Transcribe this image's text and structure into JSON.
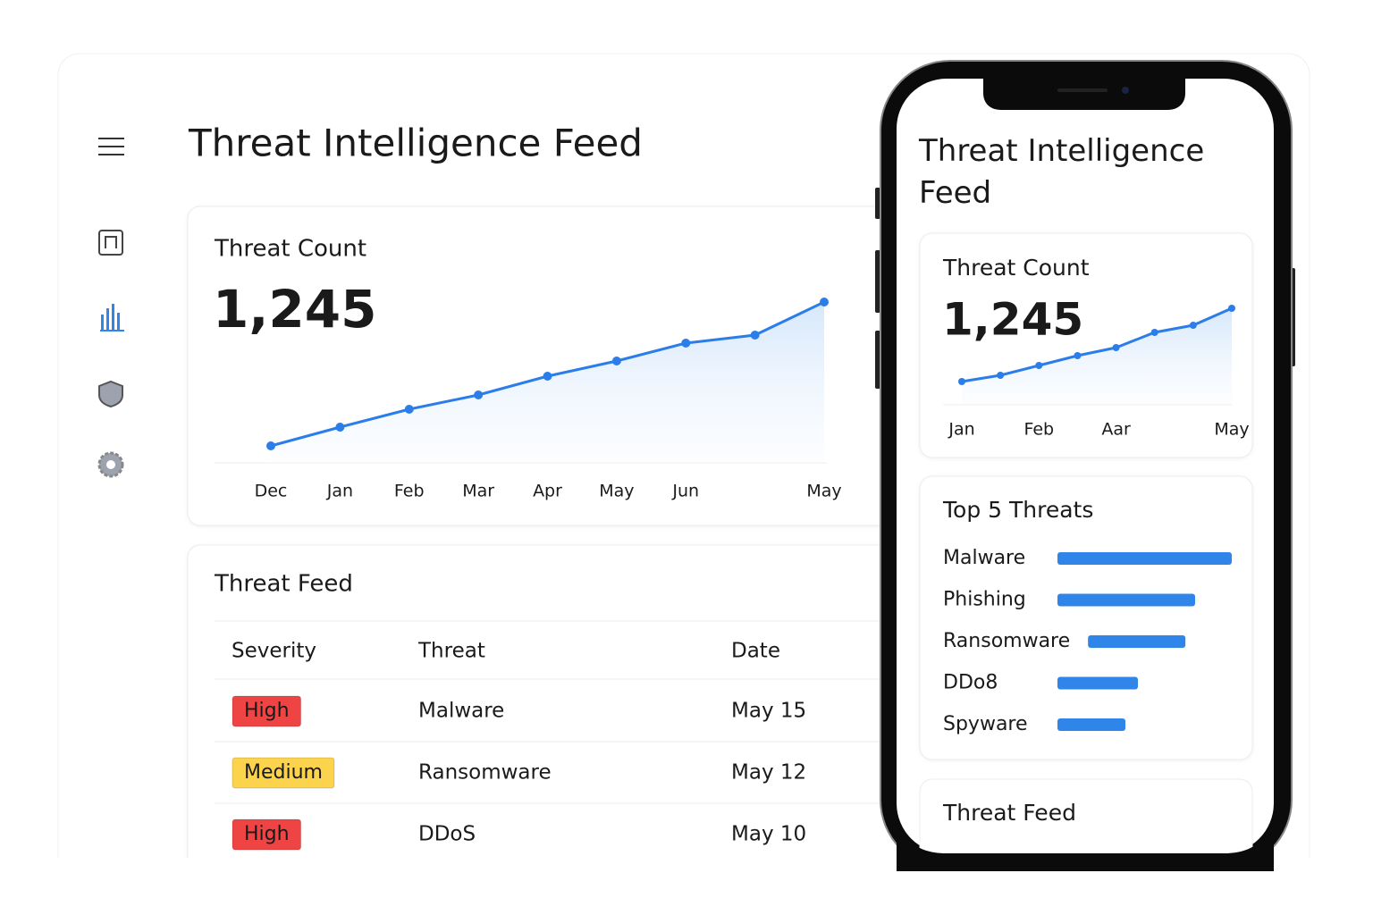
{
  "desktop": {
    "title": "Threat Intelligence Feed",
    "threat_count": {
      "label": "Threat Count",
      "value": "1,245",
      "chart_data": {
        "type": "line",
        "categories": [
          "Dec",
          "Jan",
          "Feb",
          "Mar",
          "Apr",
          "May",
          "Jun",
          null,
          "May"
        ],
        "values": [
          19,
          40,
          60,
          76,
          97,
          114,
          134,
          143,
          180
        ],
        "color": "#2b7de9"
      }
    },
    "threat_feed": {
      "title": "Threat Feed",
      "columns": [
        "Severity",
        "Threat",
        "Date"
      ],
      "rows": [
        {
          "severity": "High",
          "severity_color": "#ef4444",
          "severity_text_color": "#ffffff",
          "threat": "Malware",
          "date": "May 15"
        },
        {
          "severity": "Medium",
          "severity_color": "#fcd34d",
          "severity_text_color": "#1f2937",
          "threat": "Ransomware",
          "date": "May 12"
        },
        {
          "severity": "High",
          "severity_color": "#ef4444",
          "severity_text_color": "#ffffff",
          "threat": "DDoS",
          "date": "May 10"
        }
      ]
    }
  },
  "mobile": {
    "title": "Threat Intelligence Feed",
    "threat_count": {
      "label": "Threat Count",
      "value": "1,245",
      "chart_data": {
        "type": "line",
        "categories": [
          "Jan",
          null,
          "Feb",
          null,
          "Aar",
          null,
          null,
          "May"
        ],
        "values": [
          26,
          33,
          44,
          55,
          64,
          81,
          89,
          108
        ],
        "color": "#2b7de9"
      }
    },
    "top_threats": {
      "chart_data": {
        "type": "bar",
        "title": "Top 5 Threats",
        "categories": [
          "Malware",
          "Phishing",
          "Ransomware",
          "DDo8",
          "Spyware"
        ],
        "values": [
          195,
          154,
          109,
          90,
          76
        ],
        "color": "#2f86e8"
      }
    },
    "threat_feed_title": "Threat Feed"
  }
}
